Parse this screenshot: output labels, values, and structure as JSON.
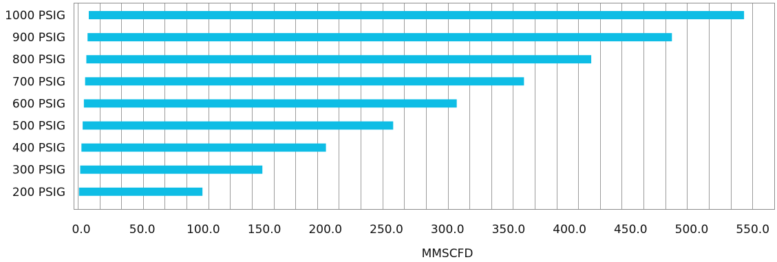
{
  "chart_data": {
    "type": "bar",
    "orientation": "horizontal",
    "categories": [
      "1000 PSIG",
      "900 PSIG",
      "800 PSIG",
      "700 PSIG",
      "600 PSIG",
      "500 PSIG",
      "400 PSIG",
      "300 PSIG",
      "200 PSIG"
    ],
    "series": [
      {
        "starts": [
          9,
          8,
          7,
          6,
          5,
          4,
          3,
          2,
          1
        ],
        "ends": [
          545,
          486,
          420,
          365,
          310,
          258,
          203,
          151,
          102
        ]
      }
    ],
    "xlabel": "MMSCFD",
    "ylabel": "",
    "xlim": [
      0,
      570
    ],
    "xticks": [
      "0.0",
      "50.0",
      "100.0",
      "150.0",
      "200.0",
      "250.0",
      "300.0",
      "350.0",
      "400.0",
      "450.0",
      "500.0",
      "550.0"
    ],
    "grid": "vertical",
    "legend": "none",
    "colors": {
      "bar": "#0EBDE5",
      "grid": "#9b9b9b",
      "frame": "#8c8c8c",
      "text": "#111111"
    }
  }
}
